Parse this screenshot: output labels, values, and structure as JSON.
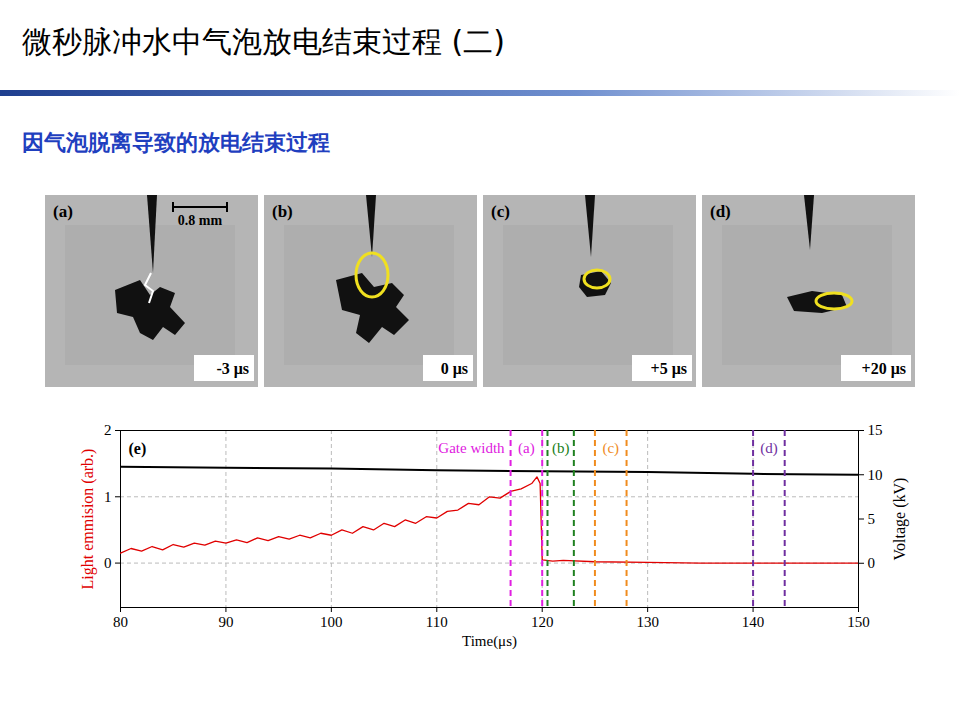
{
  "title": "微秒脉冲水中气泡放电结束过程 (二)",
  "subtitle": "因气泡脱离导致的放电结束过程",
  "panels": [
    {
      "label": "(a)",
      "time": "-3 μs",
      "scale_bar": "0.8 mm"
    },
    {
      "label": "(b)",
      "time": "0 μs"
    },
    {
      "label": "(c)",
      "time": "+5 μs"
    },
    {
      "label": "(d)",
      "time": "+20 μs"
    }
  ],
  "chart_data": {
    "type": "line",
    "panel_label": "(e)",
    "x_label": "Time(μs)",
    "xlim": [
      80,
      150
    ],
    "xticks": [
      80,
      90,
      100,
      110,
      120,
      130,
      140,
      150
    ],
    "ylim": [
      -0.67,
      2
    ],
    "yticks": [
      0,
      1,
      2
    ],
    "y2lim": [
      -5,
      15
    ],
    "y2ticks": [
      0,
      5,
      10,
      15
    ],
    "grid": true,
    "series": [
      {
        "name": "Light emmision (arb.)",
        "color": "#e00000",
        "x": [
          80,
          81,
          82,
          83,
          84,
          85,
          86,
          87,
          88,
          89,
          90,
          91,
          92,
          93,
          94,
          95,
          96,
          97,
          98,
          99,
          100,
          101,
          102,
          103,
          104,
          105,
          106,
          107,
          108,
          109,
          110,
          111,
          112,
          113,
          114,
          115,
          116,
          117,
          118,
          119,
          119.5,
          119.8,
          120,
          121,
          122,
          125,
          130,
          135,
          140,
          145,
          150
        ],
        "values": [
          0.15,
          0.22,
          0.18,
          0.25,
          0.2,
          0.28,
          0.24,
          0.3,
          0.27,
          0.33,
          0.3,
          0.35,
          0.31,
          0.38,
          0.34,
          0.4,
          0.36,
          0.42,
          0.38,
          0.45,
          0.42,
          0.5,
          0.45,
          0.55,
          0.5,
          0.6,
          0.55,
          0.65,
          0.6,
          0.7,
          0.68,
          0.78,
          0.8,
          0.9,
          0.88,
          1.0,
          0.98,
          1.08,
          1.12,
          1.2,
          1.3,
          1.2,
          0.05,
          0.03,
          0.04,
          0.02,
          0.01,
          0,
          0,
          0,
          0
        ]
      },
      {
        "name": "Voltage (kV)",
        "color": "#000000",
        "axis": "y2",
        "x": [
          80,
          90,
          100,
          110,
          120,
          130,
          140,
          150
        ],
        "values": [
          10.9,
          10.8,
          10.7,
          10.5,
          10.4,
          10.3,
          10.1,
          10.0
        ]
      }
    ],
    "gate_title": {
      "text": "Gate width",
      "color": "#e020e0"
    },
    "gates": [
      {
        "label": "(a)",
        "color": "#e020e0",
        "start": 117,
        "end": 120
      },
      {
        "label": "(b)",
        "color": "#208020",
        "start": 120.5,
        "end": 123
      },
      {
        "label": "(c)",
        "color": "#f08c1e",
        "start": 125,
        "end": 128
      },
      {
        "label": "(d)",
        "color": "#7030a0",
        "start": 140,
        "end": 143
      }
    ]
  }
}
